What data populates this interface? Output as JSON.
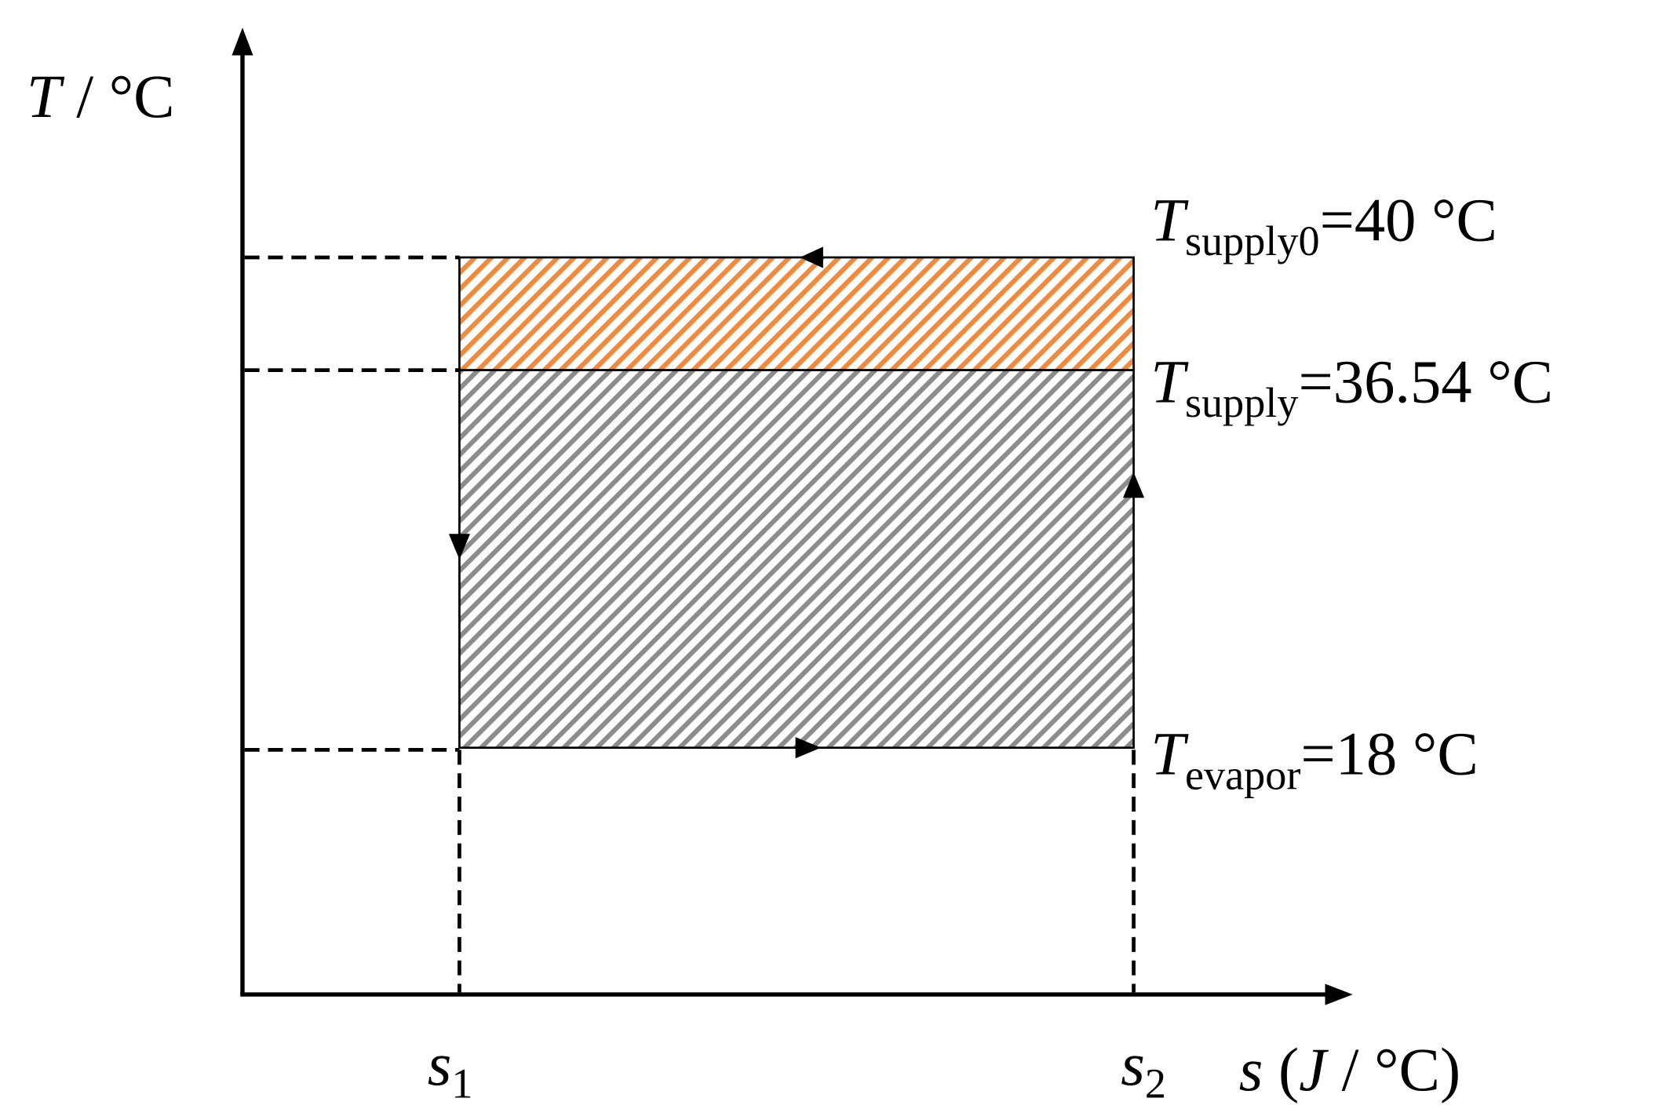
{
  "axes": {
    "y_label": {
      "symbol": "T",
      "unit": " / °C"
    },
    "x_label": {
      "symbol": "s",
      "open": " (",
      "unit_symbol": "J",
      "unit_rest": " / °C)"
    }
  },
  "levels": [
    {
      "symbol": "T",
      "subscript": "supply0",
      "value": "=40 °C"
    },
    {
      "symbol": "T",
      "subscript": "supply",
      "value": "=36.54 °C"
    },
    {
      "symbol": "T",
      "subscript": "evapor",
      "value": "=18 °C"
    }
  ],
  "x_marks": [
    {
      "symbol": "s",
      "subscript": "1"
    },
    {
      "symbol": "s",
      "subscript": "2"
    }
  ]
}
